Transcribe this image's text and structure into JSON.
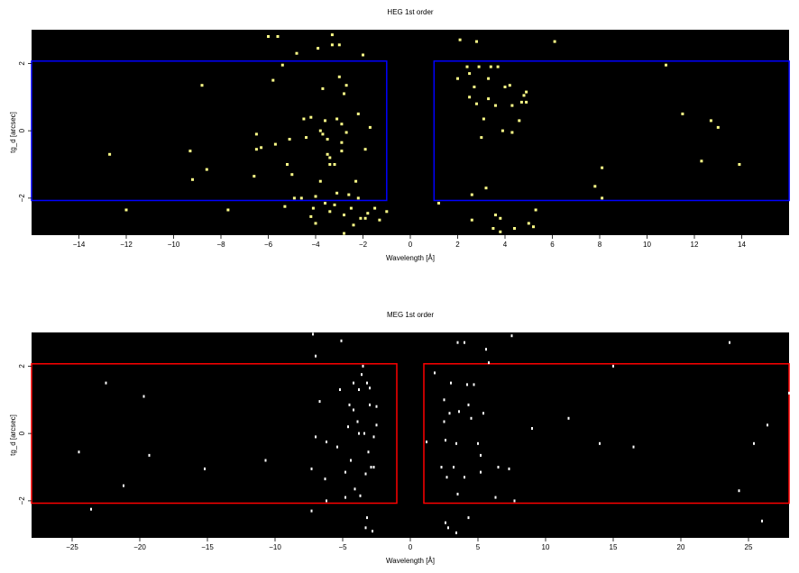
{
  "chart_data": [
    {
      "type": "scatter",
      "title": "HEG 1st order",
      "xlabel": "Wavelength [Å]",
      "ylabel": "tg_d [arcsec]",
      "xlim": [
        -16.0,
        16.0
      ],
      "ylim": [
        -3.1,
        3.0
      ],
      "xticks": [
        -14,
        -12,
        -10,
        -8,
        -6,
        -4,
        -2,
        0,
        2,
        4,
        6,
        8,
        10,
        12,
        14
      ],
      "yticks": [
        -2,
        0,
        2
      ],
      "background": "#000000",
      "point_color": "#ffff88",
      "regions": [
        {
          "x": [
            -16.0,
            -1.0
          ],
          "y": [
            -2.07,
            2.07
          ],
          "color": "#0000ff"
        },
        {
          "x": [
            1.0,
            16.0
          ],
          "y": [
            -2.07,
            2.07
          ],
          "color": "#0000ff"
        }
      ],
      "points": [
        [
          -12.7,
          -0.7
        ],
        [
          -12.0,
          -2.35
        ],
        [
          -9.3,
          -0.6
        ],
        [
          -9.2,
          -1.45
        ],
        [
          -8.8,
          1.35
        ],
        [
          -8.6,
          -1.15
        ],
        [
          -7.7,
          -2.35
        ],
        [
          -6.6,
          -1.35
        ],
        [
          -6.5,
          -0.1
        ],
        [
          -6.5,
          -0.55
        ],
        [
          -6.3,
          -0.5
        ],
        [
          -6.0,
          2.8
        ],
        [
          -5.7,
          -0.4
        ],
        [
          -5.8,
          1.5
        ],
        [
          -5.6,
          2.8
        ],
        [
          -5.4,
          1.95
        ],
        [
          -5.3,
          -2.25
        ],
        [
          -5.2,
          -1.0
        ],
        [
          -5.0,
          -1.3
        ],
        [
          -5.1,
          -0.25
        ],
        [
          -4.9,
          -2.0
        ],
        [
          -4.8,
          2.3
        ],
        [
          -4.6,
          -2.0
        ],
        [
          -4.5,
          0.35
        ],
        [
          -4.4,
          -0.2
        ],
        [
          -4.2,
          -2.55
        ],
        [
          -4.2,
          0.4
        ],
        [
          -4.1,
          -2.3
        ],
        [
          -4.0,
          -1.95
        ],
        [
          -4.0,
          -2.75
        ],
        [
          -3.9,
          2.45
        ],
        [
          -3.8,
          -1.5
        ],
        [
          -3.8,
          0.0
        ],
        [
          -3.7,
          -0.1
        ],
        [
          -3.7,
          1.25
        ],
        [
          -3.6,
          -2.15
        ],
        [
          -3.6,
          0.3
        ],
        [
          -3.5,
          -0.25
        ],
        [
          -3.5,
          -0.7
        ],
        [
          -3.4,
          -0.8
        ],
        [
          -3.4,
          -1.0
        ],
        [
          -3.4,
          -2.4
        ],
        [
          -3.3,
          2.85
        ],
        [
          -3.3,
          2.55
        ],
        [
          -3.2,
          -1.0
        ],
        [
          -3.2,
          -2.2
        ],
        [
          -3.1,
          0.35
        ],
        [
          -3.1,
          -1.85
        ],
        [
          -3.0,
          1.6
        ],
        [
          -3.0,
          2.55
        ],
        [
          -2.9,
          0.2
        ],
        [
          -2.9,
          -0.35
        ],
        [
          -2.9,
          -0.6
        ],
        [
          -2.8,
          -2.5
        ],
        [
          -2.8,
          -3.05
        ],
        [
          -2.8,
          1.1
        ],
        [
          -2.7,
          1.35
        ],
        [
          -2.7,
          -0.05
        ],
        [
          -2.6,
          -1.9
        ],
        [
          -2.5,
          -2.3
        ],
        [
          -2.4,
          -2.8
        ],
        [
          -2.3,
          -1.5
        ],
        [
          -2.2,
          -2.0
        ],
        [
          -2.2,
          0.5
        ],
        [
          -2.1,
          -2.6
        ],
        [
          -2.0,
          2.25
        ],
        [
          -1.9,
          -0.55
        ],
        [
          -1.9,
          -2.6
        ],
        [
          -1.8,
          -2.45
        ],
        [
          -1.7,
          0.1
        ],
        [
          -1.5,
          -2.3
        ],
        [
          -1.3,
          -2.65
        ],
        [
          -1.0,
          -2.4
        ],
        [
          1.2,
          -2.15
        ],
        [
          2.0,
          1.55
        ],
        [
          2.1,
          2.7
        ],
        [
          2.4,
          1.9
        ],
        [
          2.5,
          1.7
        ],
        [
          2.5,
          1.0
        ],
        [
          2.6,
          -2.65
        ],
        [
          2.6,
          -1.9
        ],
        [
          2.7,
          1.3
        ],
        [
          2.8,
          0.8
        ],
        [
          2.8,
          2.65
        ],
        [
          2.9,
          1.9
        ],
        [
          3.0,
          -0.2
        ],
        [
          3.1,
          0.35
        ],
        [
          3.2,
          -1.7
        ],
        [
          3.3,
          0.95
        ],
        [
          3.3,
          1.55
        ],
        [
          3.4,
          1.9
        ],
        [
          3.5,
          -2.9
        ],
        [
          3.6,
          -2.5
        ],
        [
          3.6,
          0.75
        ],
        [
          3.7,
          1.9
        ],
        [
          3.8,
          -2.6
        ],
        [
          3.8,
          -3.0
        ],
        [
          3.9,
          0.0
        ],
        [
          4.0,
          1.3
        ],
        [
          4.2,
          1.35
        ],
        [
          4.3,
          0.75
        ],
        [
          4.3,
          -0.05
        ],
        [
          4.4,
          -2.9
        ],
        [
          4.6,
          0.3
        ],
        [
          4.7,
          0.85
        ],
        [
          4.8,
          1.05
        ],
        [
          4.9,
          0.85
        ],
        [
          4.9,
          1.15
        ],
        [
          5.0,
          -2.75
        ],
        [
          5.2,
          -2.85
        ],
        [
          5.3,
          -2.35
        ],
        [
          6.1,
          2.65
        ],
        [
          7.8,
          -1.65
        ],
        [
          8.1,
          -2.0
        ],
        [
          8.1,
          -1.1
        ],
        [
          10.8,
          1.95
        ],
        [
          11.5,
          0.5
        ],
        [
          12.3,
          -0.9
        ],
        [
          12.7,
          0.3
        ],
        [
          13.0,
          0.1
        ],
        [
          13.9,
          -1.0
        ]
      ]
    },
    {
      "type": "scatter",
      "title": "MEG 1st order",
      "xlabel": "Wavelength [Å]",
      "ylabel": "tg_d [arcsec]",
      "xlim": [
        -28.0,
        28.0
      ],
      "ylim": [
        -3.1,
        3.0
      ],
      "xticks": [
        -25,
        -20,
        -15,
        -10,
        -5,
        0,
        5,
        10,
        15,
        20,
        25
      ],
      "yticks": [
        -2,
        0,
        2
      ],
      "background": "#000000",
      "point_color": "#ffffff",
      "regions": [
        {
          "x": [
            -28.0,
            -1.0
          ],
          "y": [
            -2.07,
            2.07
          ],
          "color": "#ff0000"
        },
        {
          "x": [
            1.0,
            28.0
          ],
          "y": [
            -2.07,
            2.07
          ],
          "color": "#ff0000"
        }
      ],
      "points": [
        [
          -24.5,
          -0.55
        ],
        [
          -23.6,
          -2.25
        ],
        [
          -22.5,
          1.5
        ],
        [
          -21.2,
          -1.55
        ],
        [
          -19.7,
          1.1
        ],
        [
          -19.3,
          -0.65
        ],
        [
          -15.2,
          -1.05
        ],
        [
          -10.7,
          -0.8
        ],
        [
          -7.3,
          -1.05
        ],
        [
          -7.3,
          -2.3
        ],
        [
          -7.2,
          2.95
        ],
        [
          -7.0,
          -0.1
        ],
        [
          -7.0,
          2.3
        ],
        [
          -6.7,
          0.95
        ],
        [
          -6.3,
          -1.35
        ],
        [
          -6.2,
          -0.25
        ],
        [
          -6.2,
          -2.0
        ],
        [
          -5.4,
          -0.4
        ],
        [
          -5.2,
          1.3
        ],
        [
          -5.1,
          2.75
        ],
        [
          -4.8,
          -1.15
        ],
        [
          -4.8,
          -1.9
        ],
        [
          -4.6,
          0.2
        ],
        [
          -4.5,
          0.85
        ],
        [
          -4.4,
          -0.8
        ],
        [
          -4.2,
          0.7
        ],
        [
          -4.2,
          1.5
        ],
        [
          -4.1,
          -1.65
        ],
        [
          -3.9,
          0.35
        ],
        [
          -3.8,
          0.0
        ],
        [
          -3.8,
          1.3
        ],
        [
          -3.7,
          -1.85
        ],
        [
          -3.6,
          1.75
        ],
        [
          -3.5,
          2.0
        ],
        [
          -3.4,
          0.0
        ],
        [
          -3.3,
          -1.2
        ],
        [
          -3.3,
          -2.8
        ],
        [
          -3.2,
          -2.5
        ],
        [
          -3.2,
          1.5
        ],
        [
          -3.1,
          -0.55
        ],
        [
          -3.0,
          0.85
        ],
        [
          -3.0,
          1.35
        ],
        [
          -2.9,
          -1.0
        ],
        [
          -2.8,
          -2.9
        ],
        [
          -2.7,
          -0.1
        ],
        [
          -2.7,
          -1.0
        ],
        [
          -2.5,
          0.25
        ],
        [
          -2.5,
          0.8
        ],
        [
          1.2,
          -0.25
        ],
        [
          1.8,
          1.8
        ],
        [
          2.3,
          -1.0
        ],
        [
          2.5,
          1.0
        ],
        [
          2.5,
          0.35
        ],
        [
          2.6,
          -2.65
        ],
        [
          2.6,
          -0.2
        ],
        [
          2.7,
          -1.3
        ],
        [
          2.8,
          -2.8
        ],
        [
          2.9,
          0.6
        ],
        [
          3.0,
          1.5
        ],
        [
          3.2,
          -1.0
        ],
        [
          3.4,
          -0.3
        ],
        [
          3.4,
          -2.95
        ],
        [
          3.5,
          -1.8
        ],
        [
          3.5,
          2.7
        ],
        [
          3.6,
          0.65
        ],
        [
          4.0,
          2.7
        ],
        [
          4.0,
          -1.3
        ],
        [
          4.3,
          -2.5
        ],
        [
          4.2,
          1.45
        ],
        [
          4.3,
          0.85
        ],
        [
          4.5,
          0.45
        ],
        [
          4.7,
          1.45
        ],
        [
          5.0,
          -0.3
        ],
        [
          5.2,
          -0.65
        ],
        [
          5.2,
          -1.15
        ],
        [
          5.4,
          0.6
        ],
        [
          5.6,
          2.5
        ],
        [
          5.8,
          2.1
        ],
        [
          6.3,
          -1.9
        ],
        [
          6.5,
          -1.0
        ],
        [
          7.3,
          -1.05
        ],
        [
          7.5,
          2.9
        ],
        [
          7.7,
          -2.0
        ],
        [
          9.0,
          0.15
        ],
        [
          11.7,
          0.45
        ],
        [
          14.0,
          -0.3
        ],
        [
          16.5,
          -0.4
        ],
        [
          15.0,
          2.0
        ],
        [
          23.6,
          2.7
        ],
        [
          24.3,
          -1.7
        ],
        [
          25.4,
          -0.3
        ],
        [
          26.0,
          -2.6
        ],
        [
          26.4,
          0.25
        ],
        [
          28.0,
          1.2
        ]
      ]
    }
  ]
}
